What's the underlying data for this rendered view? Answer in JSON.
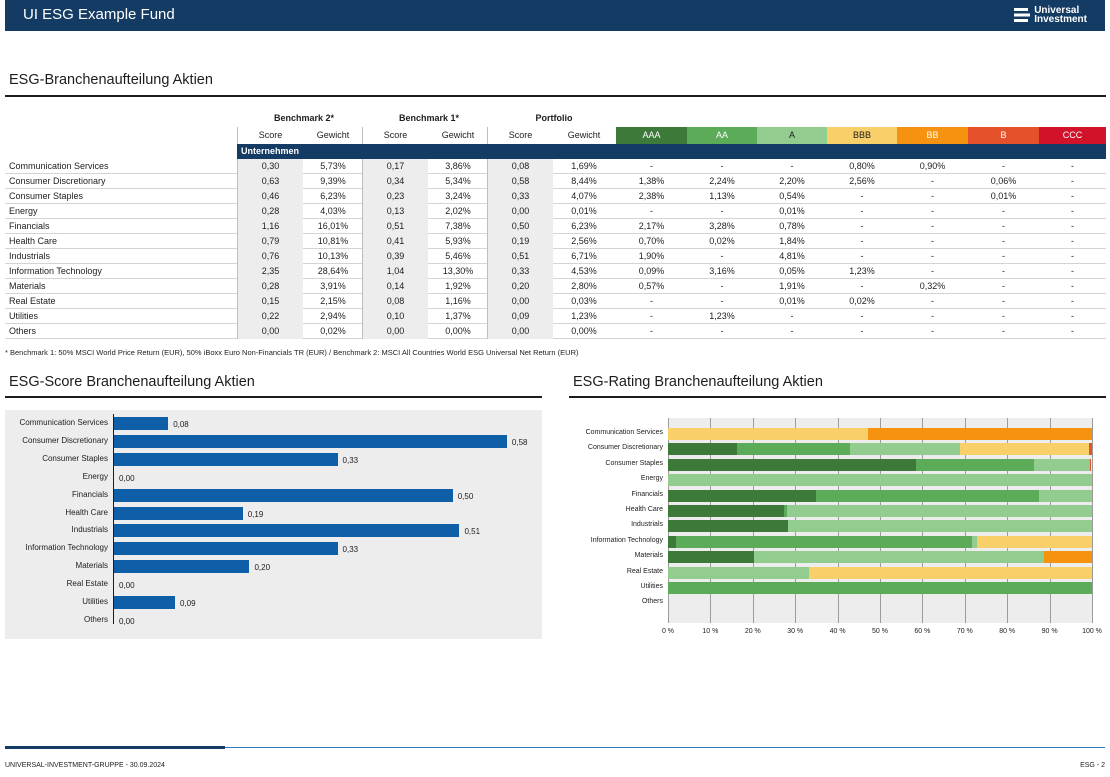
{
  "header": {
    "title": "UI ESG Example Fund",
    "logo_line1": "Universal",
    "logo_line2": "Investment"
  },
  "table_section": {
    "title": "ESG-Branchenaufteilung Aktien",
    "groups": [
      "Benchmark  2*",
      "Benchmark  1*",
      "Portfolio"
    ],
    "col_headers": [
      "Score",
      "Gewicht",
      "Score",
      "Gewicht",
      "Score",
      "Gewicht"
    ],
    "rating_headers": [
      "AAA",
      "AA",
      "A",
      "BBB",
      "BB",
      "B",
      "CCC"
    ],
    "rating_colors": [
      "#3d7a3a",
      "#5cab58",
      "#93cc8f",
      "#f9cf6a",
      "#f5920f",
      "#e4512a",
      "#d0122b"
    ],
    "rating_text_colors": [
      "#ffffff",
      "#ffffff",
      "#1d1d1d",
      "#1d1d1d",
      "#ffffff",
      "#ffffff",
      "#ffffff"
    ],
    "section_label": "Unternehmen",
    "rows": [
      {
        "name": "Communication Services",
        "v": [
          "0,30",
          "5,73%",
          "0,17",
          "3,86%",
          "0,08",
          "1,69%",
          "-",
          "-",
          "-",
          "0,80%",
          "0,90%",
          "-",
          "-"
        ]
      },
      {
        "name": "Consumer Discretionary",
        "v": [
          "0,63",
          "9,39%",
          "0,34",
          "5,34%",
          "0,58",
          "8,44%",
          "1,38%",
          "2,24%",
          "2,20%",
          "2,56%",
          "-",
          "0,06%",
          "-"
        ]
      },
      {
        "name": "Consumer Staples",
        "v": [
          "0,46",
          "6,23%",
          "0,23",
          "3,24%",
          "0,33",
          "4,07%",
          "2,38%",
          "1,13%",
          "0,54%",
          "-",
          "-",
          "0,01%",
          "-"
        ]
      },
      {
        "name": "Energy",
        "v": [
          "0,28",
          "4,03%",
          "0,13",
          "2,02%",
          "0,00",
          "0,01%",
          "-",
          "-",
          "0,01%",
          "-",
          "-",
          "-",
          "-"
        ]
      },
      {
        "name": "Financials",
        "v": [
          "1,16",
          "16,01%",
          "0,51",
          "7,38%",
          "0,50",
          "6,23%",
          "2,17%",
          "3,28%",
          "0,78%",
          "-",
          "-",
          "-",
          "-"
        ]
      },
      {
        "name": "Health Care",
        "v": [
          "0,79",
          "10,81%",
          "0,41",
          "5,93%",
          "0,19",
          "2,56%",
          "0,70%",
          "0,02%",
          "1,84%",
          "-",
          "-",
          "-",
          "-"
        ]
      },
      {
        "name": "Industrials",
        "v": [
          "0,76",
          "10,13%",
          "0,39",
          "5,46%",
          "0,51",
          "6,71%",
          "1,90%",
          "-",
          "4,81%",
          "-",
          "-",
          "-",
          "-"
        ]
      },
      {
        "name": "Information Technology",
        "v": [
          "2,35",
          "28,64%",
          "1,04",
          "13,30%",
          "0,33",
          "4,53%",
          "0,09%",
          "3,16%",
          "0,05%",
          "1,23%",
          "-",
          "-",
          "-"
        ]
      },
      {
        "name": "Materials",
        "v": [
          "0,28",
          "3,91%",
          "0,14",
          "1,92%",
          "0,20",
          "2,80%",
          "0,57%",
          "-",
          "1,91%",
          "-",
          "0,32%",
          "-",
          "-"
        ]
      },
      {
        "name": "Real Estate",
        "v": [
          "0,15",
          "2,15%",
          "0,08",
          "1,16%",
          "0,00",
          "0,03%",
          "-",
          "-",
          "0,01%",
          "0,02%",
          "-",
          "-",
          "-"
        ]
      },
      {
        "name": "Utilities",
        "v": [
          "0,22",
          "2,94%",
          "0,10",
          "1,37%",
          "0,09",
          "1,23%",
          "-",
          "1,23%",
          "-",
          "-",
          "-",
          "-",
          "-"
        ]
      },
      {
        "name": "Others",
        "v": [
          "0,00",
          "0,02%",
          "0,00",
          "0,00%",
          "0,00",
          "0,00%",
          "-",
          "-",
          "-",
          "-",
          "-",
          "-",
          "-"
        ]
      }
    ],
    "footnote": "* Benchmark 1: 50% MSCI World Price Return (EUR), 50% iBoxx Euro Non-Financials TR (EUR) / Benchmark 2:  MSCI All Countries World ESG Universal Net Return (EUR)"
  },
  "chart_data": [
    {
      "type": "bar",
      "orientation": "horizontal",
      "title": "ESG-Score Branchenaufteilung Aktien",
      "categories": [
        "Communication Services",
        "Consumer Discretionary",
        "Consumer Staples",
        "Energy",
        "Financials",
        "Health Care",
        "Industrials",
        "Information Technology",
        "Materials",
        "Real Estate",
        "Utilities",
        "Others"
      ],
      "values": [
        0.08,
        0.58,
        0.33,
        0.0,
        0.5,
        0.19,
        0.51,
        0.33,
        0.2,
        0.0,
        0.09,
        0.0
      ],
      "value_labels": [
        "0,08",
        "0,58",
        "0,33",
        "0,00",
        "0,50",
        "0,19",
        "0,51",
        "0,33",
        "0,20",
        "0,00",
        "0,09",
        "0,00"
      ],
      "xlim": [
        0,
        0.62
      ],
      "bar_color": "#0f5ea8"
    },
    {
      "type": "bar",
      "orientation": "horizontal",
      "stacked": "percent",
      "title": "ESG-Rating Branchenaufteilung Aktien",
      "categories": [
        "Communication Services",
        "Consumer Discretionary",
        "Consumer Staples",
        "Energy",
        "Financials",
        "Health Care",
        "Industrials",
        "Information Technology",
        "Materials",
        "Real Estate",
        "Utilities",
        "Others"
      ],
      "x_ticks": [
        "0 %",
        "10 %",
        "20 %",
        "30 %",
        "40 %",
        "50 %",
        "60 %",
        "70 %",
        "80 %",
        "90 %",
        "100 %"
      ],
      "series": [
        {
          "name": "AAA",
          "color": "#3d7a3a",
          "values": [
            0,
            16.35,
            58.48,
            0,
            34.83,
            27.34,
            28.32,
            1.99,
            20.36,
            0,
            0,
            0
          ]
        },
        {
          "name": "AA",
          "color": "#5cab58",
          "values": [
            0,
            26.54,
            27.76,
            0,
            52.65,
            0.78,
            0,
            69.76,
            0,
            0,
            100,
            0
          ]
        },
        {
          "name": "A",
          "color": "#93cc8f",
          "values": [
            0,
            26.07,
            13.27,
            100,
            12.52,
            71.88,
            71.68,
            1.1,
            68.21,
            33.33,
            0,
            0
          ]
        },
        {
          "name": "BBB",
          "color": "#f9cf6a",
          "values": [
            47.06,
            30.33,
            0,
            0,
            0,
            0,
            0,
            27.15,
            0,
            66.67,
            0,
            0
          ]
        },
        {
          "name": "BB",
          "color": "#f5920f",
          "values": [
            52.94,
            0,
            0,
            0,
            0,
            0,
            0,
            0,
            11.43,
            0,
            0,
            0
          ]
        },
        {
          "name": "B",
          "color": "#e4512a",
          "values": [
            0,
            0.71,
            0.25,
            0,
            0,
            0,
            0,
            0,
            0,
            0,
            0,
            0
          ]
        },
        {
          "name": "CCC",
          "color": "#d0122b",
          "values": [
            0,
            0,
            0,
            0,
            0,
            0,
            0,
            0,
            0,
            0,
            0,
            0
          ]
        }
      ],
      "xlim": [
        0,
        100
      ]
    }
  ],
  "footer": {
    "left": "UNIVERSAL-INVESTMENT-GRUPPE  -  30.09.2024",
    "right": "ESG - 2"
  }
}
